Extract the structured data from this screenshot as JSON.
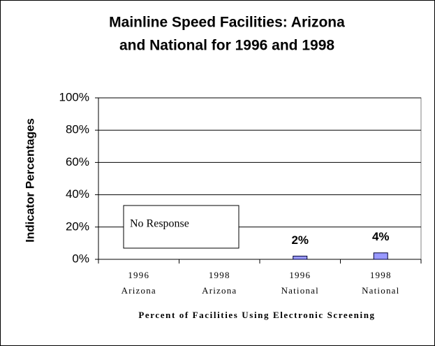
{
  "chart_data": {
    "type": "bar",
    "title": [
      "Mainline Speed Facilities: Arizona",
      "and National for 1996 and 1998"
    ],
    "categories": [
      [
        "1996",
        "Arizona"
      ],
      [
        "1998",
        "Arizona"
      ],
      [
        "1996",
        "National"
      ],
      [
        "1998",
        "National"
      ]
    ],
    "values": [
      null,
      null,
      2,
      4
    ],
    "value_labels": [
      null,
      null,
      "2%",
      "4%"
    ],
    "color": "#9999ff",
    "ylim": [
      0,
      100
    ],
    "yticks": [
      {
        "value": 0,
        "label": "0%"
      },
      {
        "value": 20,
        "label": "20%"
      },
      {
        "value": 40,
        "label": "40%"
      },
      {
        "value": 60,
        "label": "60%"
      },
      {
        "value": 80,
        "label": "80%"
      },
      {
        "value": 100,
        "label": "100%"
      }
    ],
    "grid": true,
    "ylabel": "Indicator Percentages",
    "xlabel": "Percent of Facilities Using Electronic Screening",
    "annotation": "No Response"
  }
}
